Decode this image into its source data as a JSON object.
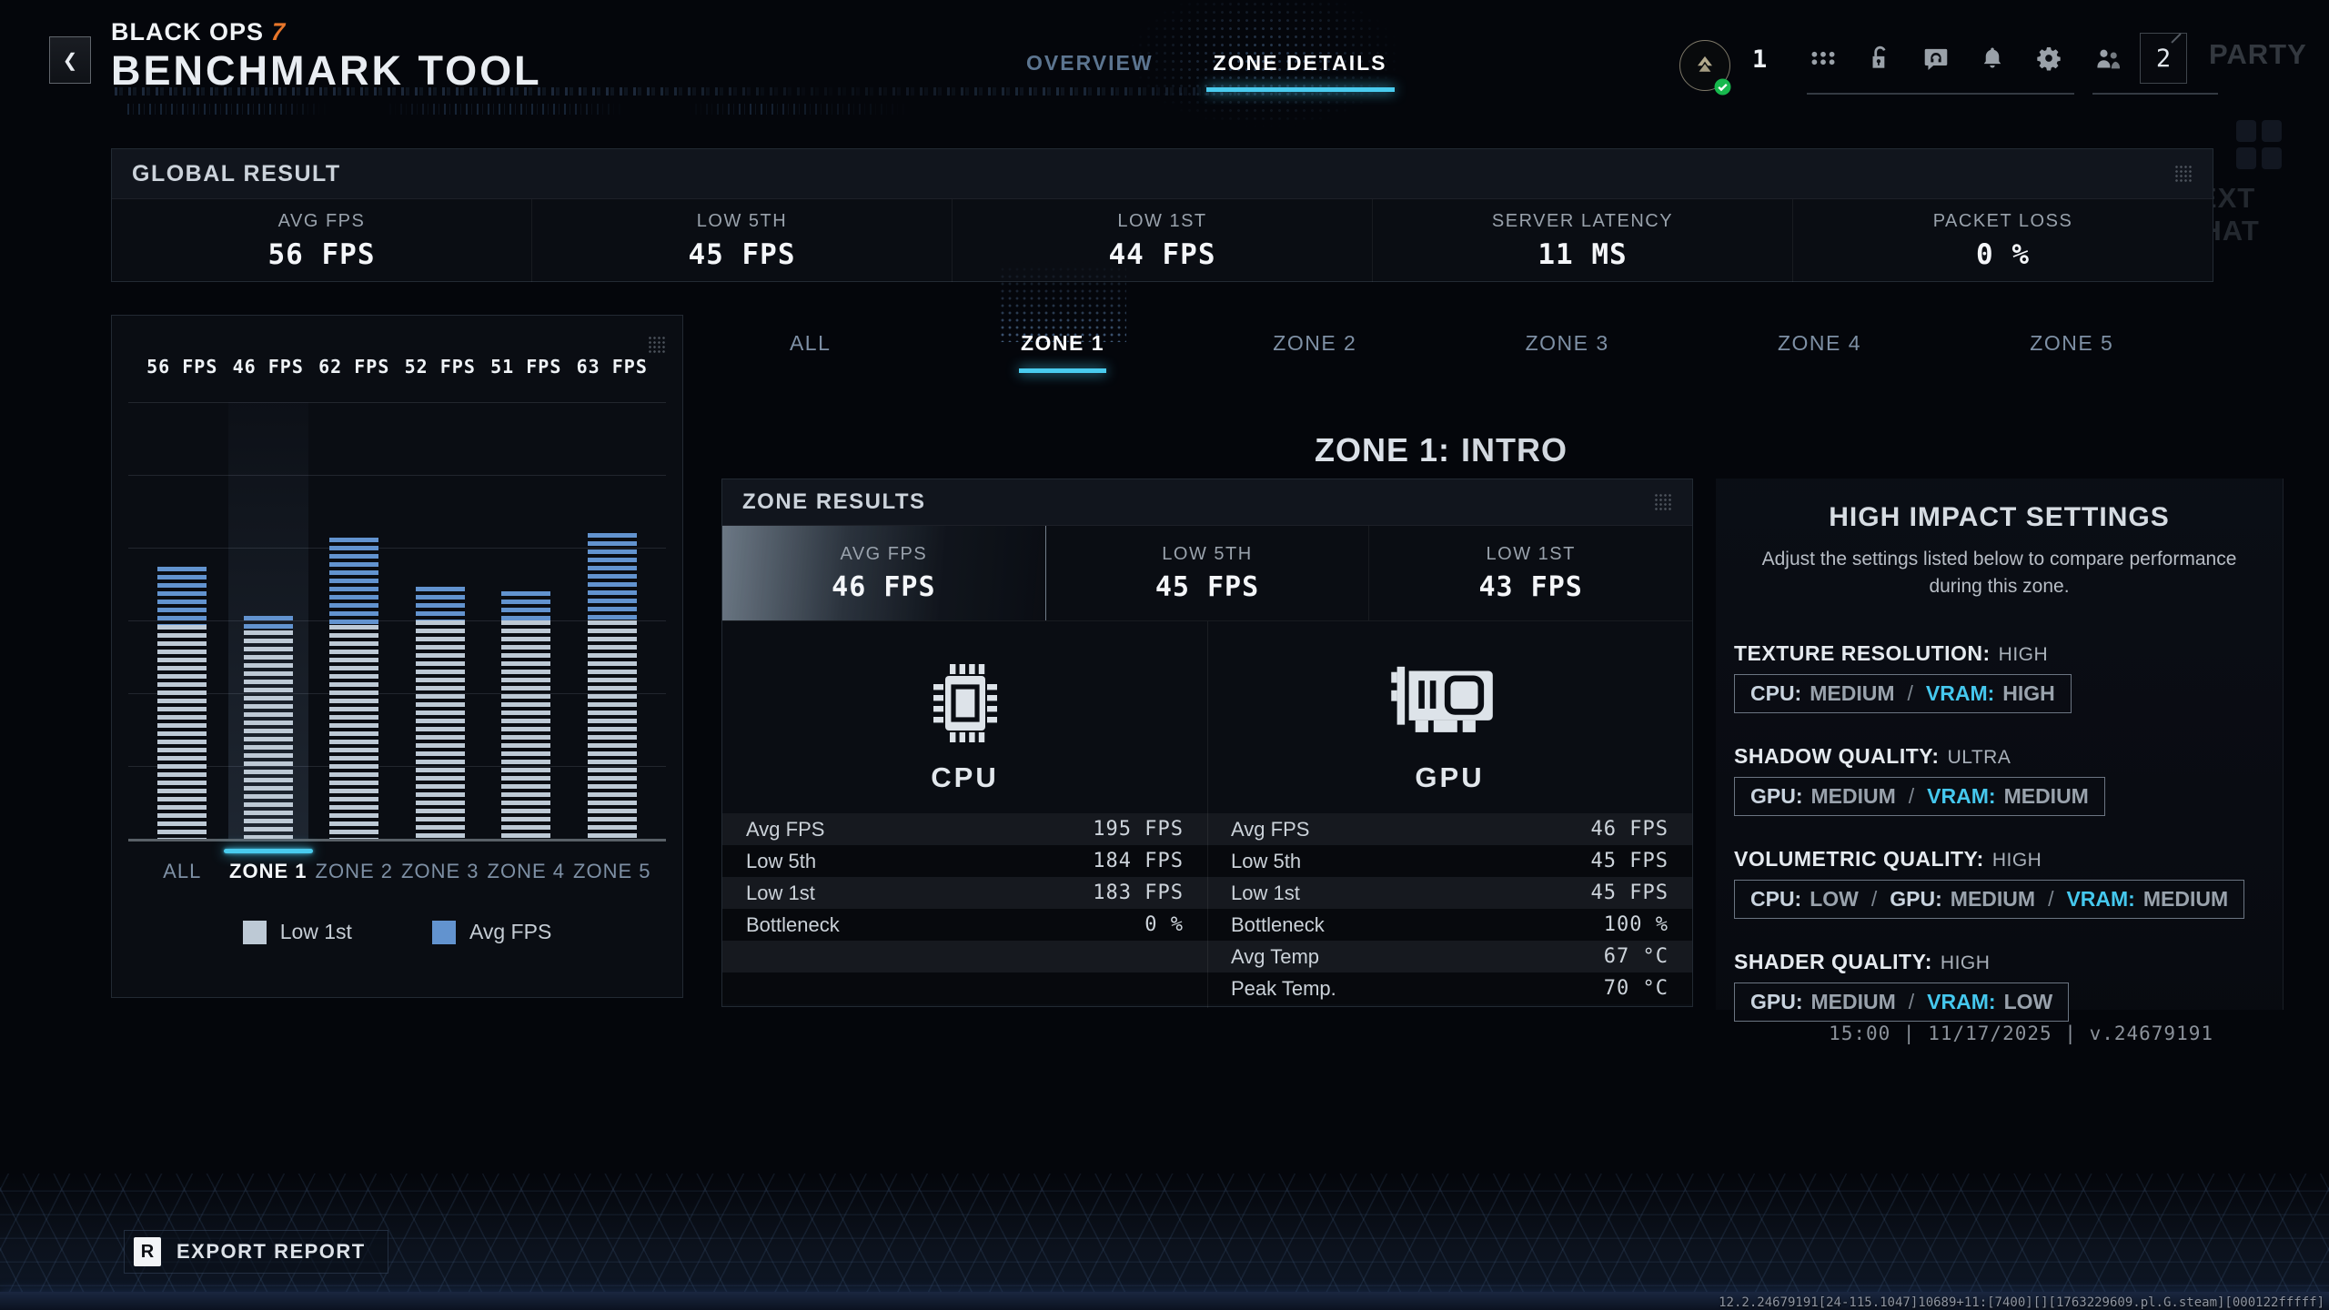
{
  "header": {
    "back_icon": "❮",
    "logo_line1": "BLACK OPS",
    "logo_line1_num": "7",
    "logo_line2": "BENCHMARK TOOL",
    "tabs": [
      {
        "label": "OVERVIEW",
        "active": false
      },
      {
        "label": "ZONE DETAILS",
        "active": true
      }
    ],
    "player": {
      "level": "1"
    },
    "actions": [
      "apps-grid-icon",
      "lock-open-icon",
      "voice-chat-icon",
      "bell-icon",
      "gear-icon"
    ],
    "social": {
      "friends_icon": "people-icon",
      "party_count": "2",
      "party_label": "PARTY"
    }
  },
  "global_result": {
    "title": "GLOBAL RESULT",
    "metrics": [
      {
        "label": "AVG FPS",
        "value": "56 FPS"
      },
      {
        "label": "LOW 5TH",
        "value": "45 FPS"
      },
      {
        "label": "LOW 1ST",
        "value": "44 FPS"
      },
      {
        "label": "SERVER LATENCY",
        "value": "11 MS"
      },
      {
        "label": "PACKET LOSS",
        "value": "0 %"
      }
    ]
  },
  "chart_data": {
    "type": "bar",
    "categories": [
      "ALL",
      "ZONE 1",
      "ZONE 2",
      "ZONE 3",
      "ZONE 4",
      "ZONE 5"
    ],
    "series": [
      {
        "name": "Low 1st",
        "values": [
          44,
          43,
          44,
          45,
          45,
          45
        ],
        "color": "#bdc9d5"
      },
      {
        "name": "Avg FPS",
        "values": [
          56,
          46,
          62,
          52,
          51,
          63
        ],
        "color": "#6293cf"
      }
    ],
    "bar_labels": [
      "56 FPS",
      "46 FPS",
      "62 FPS",
      "52 FPS",
      "51 FPS",
      "63 FPS"
    ],
    "selected_category": "ZONE 1",
    "ylim": [
      0,
      90
    ],
    "gridline_step": 15,
    "grid": true,
    "legend_position": "bottom"
  },
  "zone_details": {
    "tabs": [
      "ALL",
      "ZONE 1",
      "ZONE 2",
      "ZONE 3",
      "ZONE 4",
      "ZONE 5"
    ],
    "active_tab": "ZONE 1",
    "heading_prefix": "ZONE 1:",
    "heading_name": "INTRO"
  },
  "zone_results": {
    "title": "ZONE RESULTS",
    "metrics": [
      {
        "label": "AVG FPS",
        "value": "46 FPS",
        "highlight": true
      },
      {
        "label": "LOW 5TH",
        "value": "45 FPS",
        "highlight": false
      },
      {
        "label": "LOW 1ST",
        "value": "43 FPS",
        "highlight": false
      }
    ],
    "components": [
      {
        "name": "CPU",
        "icon": "cpu-chip-icon",
        "rows": [
          {
            "label": "Avg FPS",
            "value": "195 FPS"
          },
          {
            "label": "Low 5th",
            "value": "184 FPS"
          },
          {
            "label": "Low 1st",
            "value": "183 FPS"
          },
          {
            "label": "Bottleneck",
            "value": "0 %"
          },
          {
            "label": "",
            "value": ""
          },
          {
            "label": "",
            "value": ""
          }
        ]
      },
      {
        "name": "GPU",
        "icon": "gpu-card-icon",
        "rows": [
          {
            "label": "Avg FPS",
            "value": "46 FPS"
          },
          {
            "label": "Low 5th",
            "value": "45 FPS"
          },
          {
            "label": "Low 1st",
            "value": "45 FPS"
          },
          {
            "label": "Bottleneck",
            "value": "100 %"
          },
          {
            "label": "Avg Temp",
            "value": "67 °C"
          },
          {
            "label": "Peak Temp.",
            "value": "70 °C"
          }
        ]
      }
    ]
  },
  "high_impact_settings": {
    "title": "HIGH IMPACT SETTINGS",
    "description": "Adjust the settings listed below to compare performance during this zone.",
    "separator": "/",
    "items": [
      {
        "setting": "TEXTURE RESOLUTION:",
        "value": "HIGH",
        "impacts": [
          {
            "label": "CPU:",
            "value": "MEDIUM",
            "accent": false
          },
          {
            "label": "VRAM:",
            "value": "HIGH",
            "accent": true
          }
        ]
      },
      {
        "setting": "SHADOW QUALITY:",
        "value": "ULTRA",
        "impacts": [
          {
            "label": "GPU:",
            "value": "MEDIUM",
            "accent": false
          },
          {
            "label": "VRAM:",
            "value": "MEDIUM",
            "accent": true
          }
        ]
      },
      {
        "setting": "VOLUMETRIC QUALITY:",
        "value": "HIGH",
        "impacts": [
          {
            "label": "CPU:",
            "value": "LOW",
            "accent": false
          },
          {
            "label": "GPU:",
            "value": "MEDIUM",
            "accent": false
          },
          {
            "label": "VRAM:",
            "value": "MEDIUM",
            "accent": true
          }
        ]
      },
      {
        "setting": "SHADER QUALITY:",
        "value": "HIGH",
        "impacts": [
          {
            "label": "GPU:",
            "value": "MEDIUM",
            "accent": false
          },
          {
            "label": "VRAM:",
            "value": "LOW",
            "accent": true
          }
        ]
      }
    ]
  },
  "footer": {
    "timestamp": "15:00 | 11/17/2025 | v.24679191",
    "export_key": "R",
    "export_label": "EXPORT REPORT",
    "debug_line": "12.2.24679191[24-115.1047]10689+11:[7400][][1763229609.pl.G.steam][000122fffff]"
  },
  "side": {
    "text_chat": "TEXT CHAT"
  },
  "colors": {
    "accent_cyan": "#49cbee",
    "bar_low": "#bdc9d5",
    "bar_avg": "#6293cf",
    "logo_orange": "#e8762a",
    "status_green": "#17b84d"
  }
}
